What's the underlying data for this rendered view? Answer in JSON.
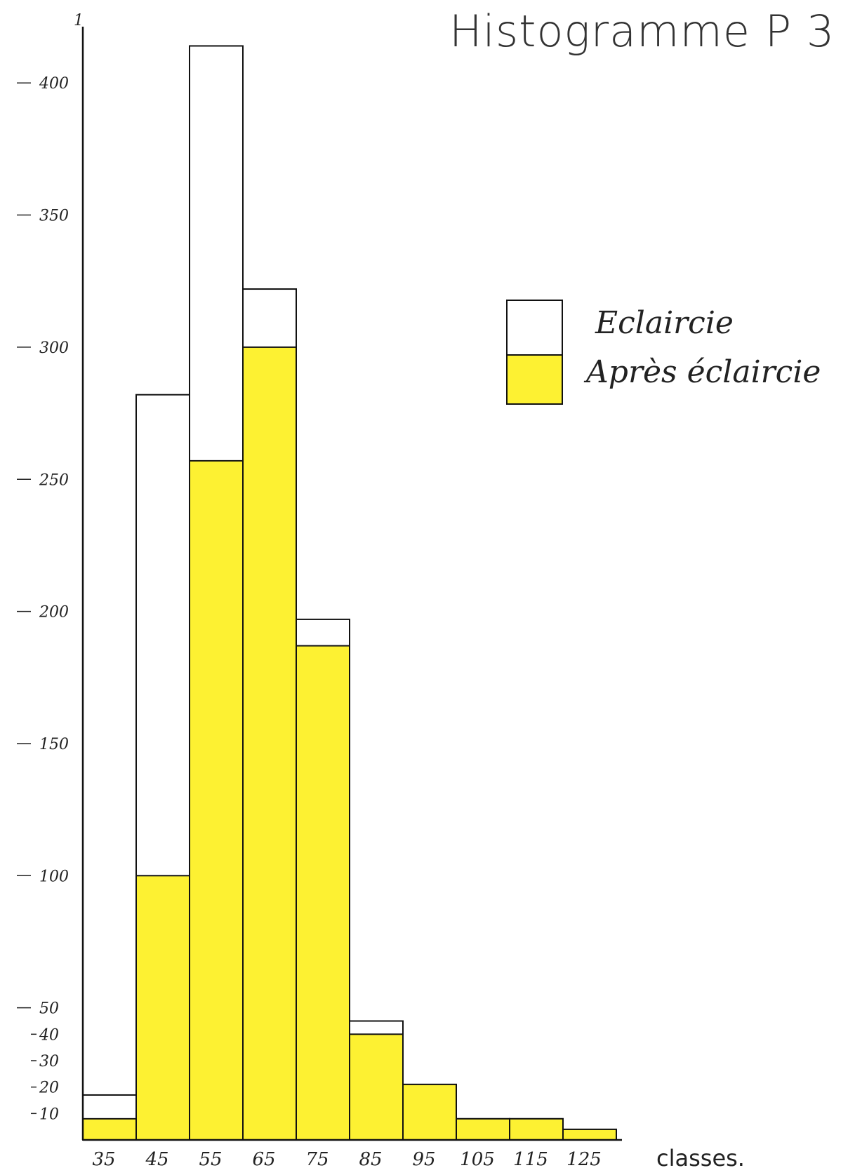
{
  "chart_data": {
    "type": "bar",
    "title": "Histogramme P 3",
    "xlabel": "classes.",
    "ylabel": "",
    "y_axis_top_mark": "1",
    "categories": [
      "35",
      "45",
      "55",
      "65",
      "75",
      "85",
      "95",
      "105",
      "115",
      "125"
    ],
    "yticks_labeled": [
      "10",
      "20",
      "30",
      "40",
      "50",
      "100",
      "150",
      "200",
      "250",
      "300",
      "350",
      "400"
    ],
    "ylim": [
      0,
      410
    ],
    "series": [
      {
        "name": "Eclaircie",
        "values": [
          17,
          282,
          414,
          322,
          197,
          45,
          21,
          8,
          8,
          4
        ]
      },
      {
        "name": "Après éclaircie",
        "values": [
          8,
          100,
          257,
          300,
          187,
          40,
          21,
          8,
          8,
          4
        ]
      }
    ],
    "legend": {
      "position": "right",
      "items": [
        "Eclaircie",
        "Après éclaircie"
      ]
    },
    "colors": {
      "eclaircie": "#ffffff",
      "apres": "#fdf132",
      "outline": "#111111"
    },
    "grid": false
  }
}
